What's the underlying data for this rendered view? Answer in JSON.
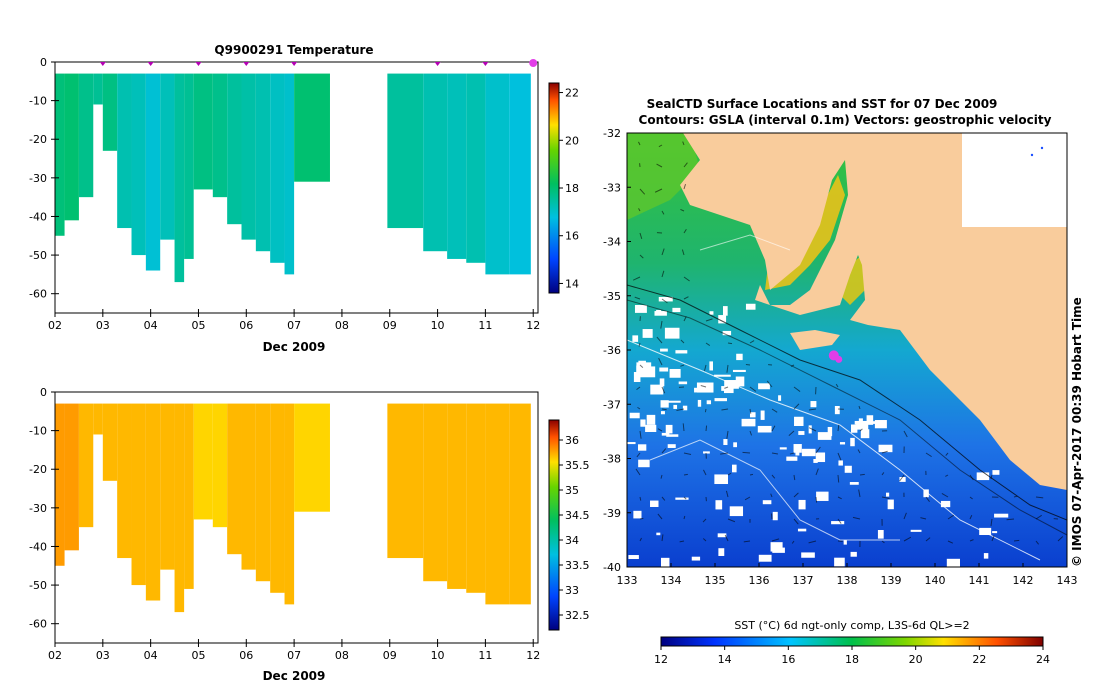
{
  "chart_data": [
    {
      "type": "heatmap",
      "id": "temperature",
      "title": "Q9900291  Temperature",
      "xlabel": "Dec 2009",
      "ylabel": "",
      "xlim": [
        2,
        12.1
      ],
      "ylim": [
        -65,
        0
      ],
      "x_ticks": [
        "02",
        "03",
        "04",
        "05",
        "06",
        "07",
        "08",
        "09",
        "10",
        "11",
        "12"
      ],
      "y_ticks": [
        "0",
        "-10",
        "-20",
        "-30",
        "-40",
        "-50",
        "-60"
      ],
      "colorbar": {
        "ticks": [
          "22",
          "20",
          "18",
          "16",
          "14"
        ],
        "range": [
          13.6,
          22.4
        ]
      },
      "profile_markers_x": [
        3,
        4,
        5,
        6,
        7,
        10,
        11,
        12
      ],
      "highlight_marker_x": 12,
      "profiles": [
        {
          "x": 2.0,
          "bottom": -45,
          "value": 17.9
        },
        {
          "x": 2.2,
          "bottom": -41,
          "value": 18.0
        },
        {
          "x": 2.5,
          "bottom": -35,
          "value": 17.7
        },
        {
          "x": 2.8,
          "bottom": -11,
          "value": 17.6
        },
        {
          "x": 3.0,
          "bottom": -23,
          "value": 17.8
        },
        {
          "x": 3.3,
          "bottom": -43,
          "value": 17.3
        },
        {
          "x": 3.6,
          "bottom": -50,
          "value": 17.2
        },
        {
          "x": 3.9,
          "bottom": -54,
          "value": 16.9
        },
        {
          "x": 4.2,
          "bottom": -46,
          "value": 17.2
        },
        {
          "x": 4.5,
          "bottom": -57,
          "value": 17.5
        },
        {
          "x": 4.7,
          "bottom": -51,
          "value": 17.6
        },
        {
          "x": 4.9,
          "bottom": -33,
          "value": 17.8
        },
        {
          "x": 5.3,
          "bottom": -35,
          "value": 17.7
        },
        {
          "x": 5.6,
          "bottom": -42,
          "value": 17.5
        },
        {
          "x": 5.9,
          "bottom": -46,
          "value": 17.4
        },
        {
          "x": 6.2,
          "bottom": -49,
          "value": 17.3
        },
        {
          "x": 6.5,
          "bottom": -52,
          "value": 17.1
        },
        {
          "x": 6.8,
          "bottom": -55,
          "value": 17.0
        },
        {
          "x": 7.0,
          "bottom": -31,
          "value": 18.0
        },
        {
          "x": 8.95,
          "bottom": -43,
          "value": 17.5
        },
        {
          "x": 9.7,
          "bottom": -49,
          "value": 17.3
        },
        {
          "x": 10.2,
          "bottom": -51,
          "value": 17.2
        },
        {
          "x": 10.6,
          "bottom": -52,
          "value": 17.3
        },
        {
          "x": 11.0,
          "bottom": -55,
          "value": 17.0
        },
        {
          "x": 11.5,
          "bottom": -55,
          "value": 16.8
        }
      ]
    },
    {
      "type": "heatmap",
      "id": "salinity",
      "title": "",
      "xlabel": "Dec 2009",
      "ylabel": "",
      "xlim": [
        2,
        12.1
      ],
      "ylim": [
        -65,
        0
      ],
      "x_ticks": [
        "02",
        "03",
        "04",
        "05",
        "06",
        "07",
        "08",
        "09",
        "10",
        "11",
        "12"
      ],
      "y_ticks": [
        "0",
        "-10",
        "-20",
        "-30",
        "-40",
        "-50",
        "-60"
      ],
      "colorbar": {
        "ticks": [
          "36",
          "35.5",
          "35",
          "34.5",
          "34",
          "33.5",
          "33",
          "32.5"
        ],
        "range": [
          32.2,
          36.4
        ]
      },
      "profiles": [
        {
          "x": 2.0,
          "bottom": -45,
          "value": 35.8
        },
        {
          "x": 2.2,
          "bottom": -41,
          "value": 35.8
        },
        {
          "x": 2.5,
          "bottom": -35,
          "value": 35.7
        },
        {
          "x": 2.8,
          "bottom": -11,
          "value": 35.7
        },
        {
          "x": 3.0,
          "bottom": -23,
          "value": 35.7
        },
        {
          "x": 3.3,
          "bottom": -43,
          "value": 35.7
        },
        {
          "x": 3.6,
          "bottom": -50,
          "value": 35.7
        },
        {
          "x": 3.9,
          "bottom": -54,
          "value": 35.7
        },
        {
          "x": 4.2,
          "bottom": -46,
          "value": 35.7
        },
        {
          "x": 4.5,
          "bottom": -57,
          "value": 35.7
        },
        {
          "x": 4.7,
          "bottom": -51,
          "value": 35.7
        },
        {
          "x": 4.9,
          "bottom": -33,
          "value": 35.6
        },
        {
          "x": 5.3,
          "bottom": -35,
          "value": 35.6
        },
        {
          "x": 5.6,
          "bottom": -42,
          "value": 35.7
        },
        {
          "x": 5.9,
          "bottom": -46,
          "value": 35.7
        },
        {
          "x": 6.2,
          "bottom": -49,
          "value": 35.7
        },
        {
          "x": 6.5,
          "bottom": -52,
          "value": 35.7
        },
        {
          "x": 6.8,
          "bottom": -55,
          "value": 35.7
        },
        {
          "x": 7.0,
          "bottom": -31,
          "value": 35.6
        },
        {
          "x": 8.95,
          "bottom": -43,
          "value": 35.7
        },
        {
          "x": 9.7,
          "bottom": -49,
          "value": 35.7
        },
        {
          "x": 10.2,
          "bottom": -51,
          "value": 35.7
        },
        {
          "x": 10.6,
          "bottom": -52,
          "value": 35.7
        },
        {
          "x": 11.0,
          "bottom": -55,
          "value": 35.7
        },
        {
          "x": 11.5,
          "bottom": -55,
          "value": 35.7
        }
      ]
    },
    {
      "type": "heatmap",
      "id": "sst-map",
      "title_line1": "SealCTD Surface Locations and SST for 07 Dec 2009",
      "title_line2": "Contours: GSLA (interval 0.1m) Vectors: geostrophic velocity",
      "xlabel": "",
      "ylabel": "",
      "xlim": [
        133,
        143
      ],
      "ylim": [
        -40,
        -32
      ],
      "x_ticks": [
        "133",
        "134",
        "135",
        "136",
        "137",
        "138",
        "139",
        "140",
        "141",
        "142",
        "143"
      ],
      "y_ticks": [
        "-32",
        "-33",
        "-34",
        "-35",
        "-36",
        "-37",
        "-38",
        "-39",
        "-40"
      ],
      "seal_location": {
        "lon": 137.7,
        "lat": -36.1
      },
      "colorbar": {
        "label": "SST (°C) 6d ngt-only comp, L3S-6d QL>=2",
        "ticks": [
          "12",
          "14",
          "16",
          "18",
          "20",
          "22",
          "24"
        ],
        "range": [
          12,
          24
        ]
      },
      "credit": "© IMOS 07-Apr-2017 00:39 Hobart Time"
    }
  ],
  "palette": {
    "land": "#f9cc9c",
    "shelf": "#bdbdbd",
    "highlight": "#e23ee8",
    "marker": "#b400b4"
  }
}
